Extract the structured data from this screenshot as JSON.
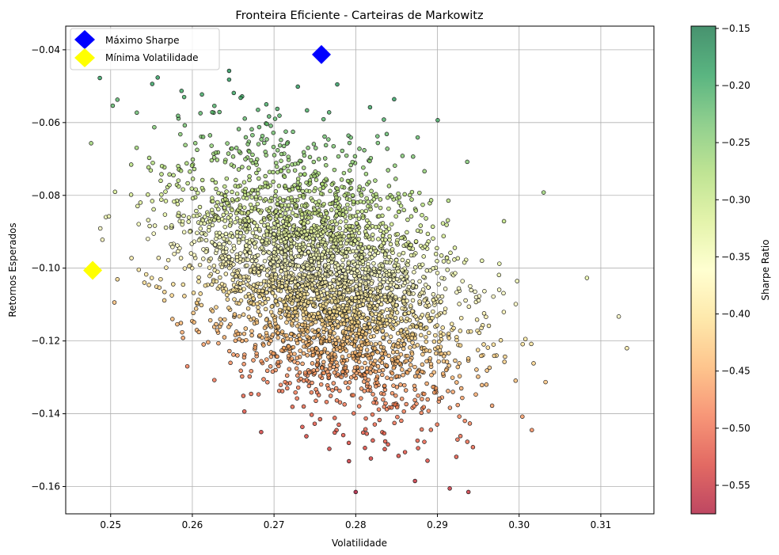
{
  "chart_data": {
    "type": "scatter",
    "title": "Fronteira Eficiente - Carteiras de Markowitz",
    "xlabel": "Volatilidade",
    "ylabel": "Retornos Esperados",
    "xlim": [
      0.2445,
      0.3165
    ],
    "ylim": [
      -0.1675,
      -0.0335
    ],
    "xticks": [
      0.25,
      0.26,
      0.27,
      0.28,
      0.29,
      0.3,
      0.31
    ],
    "xtick_labels": [
      "0.25",
      "0.26",
      "0.27",
      "0.28",
      "0.29",
      "0.30",
      "0.31"
    ],
    "yticks": [
      -0.04,
      -0.06,
      -0.08,
      -0.1,
      -0.12,
      -0.14,
      -0.16
    ],
    "ytick_labels": [
      "−0.04",
      "−0.06",
      "−0.08",
      "−0.10",
      "−0.12",
      "−0.14",
      "−0.16"
    ],
    "grid": true,
    "legend_position": "top-left",
    "colorbar": {
      "label": "Sharpe Ratio",
      "colormap": "RdYlGn",
      "range": [
        -0.575,
        -0.148
      ],
      "ticks": [
        -0.15,
        -0.2,
        -0.25,
        -0.3,
        -0.35,
        -0.4,
        -0.45,
        -0.5,
        -0.55
      ],
      "tick_labels": [
        "−0.15",
        "−0.20",
        "−0.25",
        "−0.30",
        "−0.35",
        "−0.40",
        "−0.45",
        "−0.50",
        "−0.55"
      ]
    },
    "portfolios": {
      "count_approx": 50000,
      "volatility_range": [
        0.247,
        0.313
      ],
      "return_range": [
        -0.162,
        -0.046
      ],
      "center": {
        "volatility": 0.276,
        "return": -0.103
      }
    },
    "highlights": [
      {
        "name": "Máximo Sharpe",
        "volatility": 0.2758,
        "return": -0.0413,
        "color": "#0000ff",
        "marker": "diamond"
      },
      {
        "name": "Mínima Volatilidade",
        "volatility": 0.2478,
        "return": -0.1006,
        "color": "#ffff00",
        "marker": "diamond"
      }
    ],
    "outliers": [
      {
        "volatility": 0.2645,
        "return": -0.0458
      },
      {
        "volatility": 0.2645,
        "return": -0.0482
      },
      {
        "volatility": 0.3132,
        "return": -0.122
      },
      {
        "volatility": 0.3122,
        "return": -0.1133
      },
      {
        "volatility": 0.3083,
        "return": -0.1027
      },
      {
        "volatility": 0.249,
        "return": -0.0922
      },
      {
        "volatility": 0.28,
        "return": -0.1615
      },
      {
        "volatility": 0.2938,
        "return": -0.1615
      },
      {
        "volatility": 0.303,
        "return": -0.0792
      },
      {
        "volatility": 0.259,
        "return": -0.053
      }
    ]
  }
}
